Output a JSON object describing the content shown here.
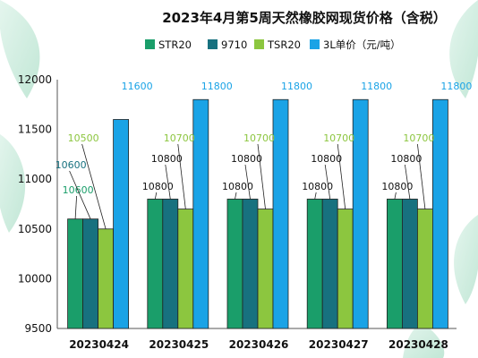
{
  "chart_data": {
    "type": "bar",
    "title": "2023年4月第5周天然橡胶网现货价格（含税）",
    "categories": [
      "20230424",
      "20230425",
      "20230426",
      "20230427",
      "20230428"
    ],
    "series": [
      {
        "name": "STR20",
        "color": "#1a9e6a",
        "values": [
          10600,
          10800,
          10800,
          10800,
          10800
        ]
      },
      {
        "name": "9710",
        "color": "#17717f",
        "values": [
          10600,
          10800,
          10800,
          10800,
          10800
        ]
      },
      {
        "name": "TSR20",
        "color": "#8cc63f",
        "values": [
          10500,
          10700,
          10700,
          10700,
          10700
        ]
      },
      {
        "name": "3L单价（元/吨）",
        "color": "#1aa3e6",
        "values": [
          11600,
          11800,
          11800,
          11800,
          11800
        ]
      }
    ],
    "yticks": [
      9500,
      10000,
      10500,
      11000,
      11500,
      12000
    ],
    "ylim": [
      9500,
      12000
    ],
    "legend_position": "top",
    "grid": false,
    "label_colors": {
      "20230424": [
        "#1a9e6a",
        "#17717f",
        "#8cc63f",
        "#1aa3e6"
      ]
    },
    "callout_labels": [
      {
        "category": 0,
        "series": 0,
        "text": "10600"
      },
      {
        "category": 0,
        "series": 1,
        "text": "10600"
      },
      {
        "category": 0,
        "series": 2,
        "text": "10500"
      },
      {
        "category": 0,
        "series": 3,
        "text": "11600"
      },
      {
        "category": 1,
        "series": 0,
        "text": "10800"
      },
      {
        "category": 1,
        "series": 1,
        "text": "10800"
      },
      {
        "category": 1,
        "series": 2,
        "text": "10700"
      },
      {
        "category": 1,
        "series": 3,
        "text": "11800"
      },
      {
        "category": 2,
        "series": 0,
        "text": "10800"
      },
      {
        "category": 2,
        "series": 1,
        "text": "10800"
      },
      {
        "category": 2,
        "series": 2,
        "text": "10700"
      },
      {
        "category": 2,
        "series": 3,
        "text": "11800"
      },
      {
        "category": 3,
        "series": 0,
        "text": "10800"
      },
      {
        "category": 3,
        "series": 1,
        "text": "10800"
      },
      {
        "category": 3,
        "series": 2,
        "text": "10700"
      },
      {
        "category": 3,
        "series": 3,
        "text": "11800"
      },
      {
        "category": 4,
        "series": 0,
        "text": "10800"
      },
      {
        "category": 4,
        "series": 1,
        "text": "10800"
      },
      {
        "category": 4,
        "series": 2,
        "text": "10700"
      },
      {
        "category": 4,
        "series": 3,
        "text": "11800"
      }
    ]
  }
}
